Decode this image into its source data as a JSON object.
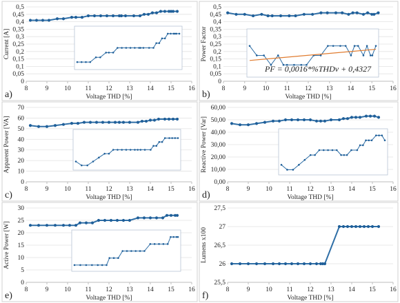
{
  "figure": {
    "panels": [
      {
        "letter": "a)",
        "ylabel": "Current [A]",
        "xlabel": "Voltage THD [%]"
      },
      {
        "letter": "b)",
        "ylabel": "Power Factor",
        "xlabel": "Voltage THD [%]",
        "equation": "PF = 0,0016*%THDv + 0,4327"
      },
      {
        "letter": "c)",
        "ylabel": "Apparent Power [VA]",
        "xlabel": "Voltage THD [%]"
      },
      {
        "letter": "d)",
        "ylabel": "Reactive Power [Var]",
        "xlabel": "Voltage THD [%]"
      },
      {
        "letter": "e)",
        "ylabel": "Active Power [W]",
        "xlabel": "Voltage THD [%]"
      },
      {
        "letter": "f)",
        "ylabel": "Lumens x100",
        "xlabel": "Voltage THD [%]"
      }
    ]
  },
  "chart_data": [
    {
      "type": "line",
      "xlabel": "Voltage THD [%]",
      "ylabel": "Current [A]",
      "xlim": [
        8,
        16
      ],
      "ylim": [
        0,
        0.5
      ],
      "xticks": [
        8,
        9,
        10,
        11,
        12,
        13,
        14,
        15,
        16
      ],
      "yticks": [
        0,
        0.05,
        0.1,
        0.15,
        0.2,
        0.25,
        0.3,
        0.35,
        0.4,
        0.45,
        0.5
      ],
      "ytick_labels": [
        "0",
        "0,05",
        "0,1",
        "0,15",
        "0,2",
        "0,25",
        "0,3",
        "0,35",
        "0,4",
        "0,45",
        "0,5"
      ],
      "x": [
        8.2,
        8.5,
        8.8,
        9.1,
        9.5,
        9.8,
        10.2,
        10.4,
        10.7,
        11.0,
        11.3,
        11.6,
        11.9,
        12.2,
        12.5,
        12.6,
        12.8,
        13.2,
        13.5,
        13.7,
        13.9,
        14.1,
        14.3,
        14.5,
        14.7,
        14.9,
        15.0,
        15.1,
        15.3
      ],
      "y": [
        0.41,
        0.41,
        0.41,
        0.41,
        0.42,
        0.42,
        0.43,
        0.43,
        0.43,
        0.44,
        0.44,
        0.44,
        0.44,
        0.44,
        0.44,
        0.44,
        0.44,
        0.44,
        0.44,
        0.45,
        0.45,
        0.46,
        0.46,
        0.47,
        0.47,
        0.47,
        0.47,
        0.47,
        0.47
      ]
    },
    {
      "type": "line",
      "xlabel": "Voltage THD [%]",
      "ylabel": "Power Factor",
      "xlim": [
        8,
        16
      ],
      "ylim": [
        0,
        0.5
      ],
      "xticks": [
        8,
        9,
        10,
        11,
        12,
        13,
        14,
        15,
        16
      ],
      "yticks": [
        0,
        0.05,
        0.1,
        0.15,
        0.2,
        0.25,
        0.3,
        0.35,
        0.4,
        0.45,
        0.5
      ],
      "ytick_labels": [
        "0",
        "0,05",
        "0,1",
        "0,15",
        "0,2",
        "0,25",
        "0,3",
        "0,35",
        "0,4",
        "0,45",
        "0,5"
      ],
      "x": [
        8.2,
        8.6,
        9.0,
        9.4,
        9.8,
        10.1,
        10.3,
        10.7,
        11.1,
        11.4,
        11.8,
        12.2,
        12.6,
        12.9,
        13.3,
        13.6,
        13.9,
        14.1,
        14.3,
        14.6,
        14.8,
        15.0,
        15.1,
        15.3
      ],
      "y": [
        0.46,
        0.45,
        0.45,
        0.44,
        0.45,
        0.44,
        0.44,
        0.44,
        0.44,
        0.44,
        0.45,
        0.45,
        0.46,
        0.46,
        0.46,
        0.46,
        0.45,
        0.46,
        0.46,
        0.45,
        0.46,
        0.45,
        0.45,
        0.46
      ],
      "trendline": {
        "equation": "PF = 0,0016*%THDv + 0,4327"
      }
    },
    {
      "type": "line",
      "xlabel": "Voltage THD [%]",
      "ylabel": "Apparent Power [VA]",
      "xlim": [
        8,
        16
      ],
      "ylim": [
        0,
        70
      ],
      "xticks": [
        8,
        9,
        10,
        11,
        12,
        13,
        14,
        15,
        16
      ],
      "yticks": [
        0,
        10,
        20,
        30,
        40,
        50,
        60,
        70
      ],
      "ytick_labels": [
        "0",
        "10",
        "20",
        "30",
        "40",
        "50",
        "60",
        "70"
      ],
      "x": [
        8.2,
        8.6,
        9.0,
        9.4,
        9.8,
        10.2,
        10.5,
        10.8,
        11.1,
        11.4,
        11.7,
        12.0,
        12.3,
        12.5,
        12.7,
        13.0,
        13.4,
        13.6,
        13.8,
        14.0,
        14.2,
        14.4,
        14.7,
        14.9,
        15.1,
        15.3
      ],
      "y": [
        53,
        52,
        52,
        53,
        54,
        55,
        55,
        56,
        56,
        56,
        56,
        56,
        56,
        56,
        56,
        56,
        56,
        57,
        57,
        58,
        58,
        59,
        59,
        59,
        59,
        59
      ]
    },
    {
      "type": "line",
      "xlabel": "Voltage THD [%]",
      "ylabel": "Reactive Power [Var]",
      "xlim": [
        8,
        16
      ],
      "ylim": [
        0,
        60
      ],
      "xticks": [
        8,
        9,
        10,
        11,
        12,
        13,
        14,
        15,
        16
      ],
      "yticks": [
        0,
        10,
        20,
        30,
        40,
        50,
        60
      ],
      "ytick_labels": [
        "0,00",
        "10,00",
        "20,00",
        "30,00",
        "40,00",
        "50,00",
        "60,00"
      ],
      "x": [
        8.2,
        8.6,
        9.0,
        9.4,
        9.8,
        10.2,
        10.5,
        10.8,
        11.1,
        11.4,
        11.7,
        12.0,
        12.3,
        12.5,
        12.7,
        13.0,
        13.4,
        13.6,
        13.8,
        14.0,
        14.2,
        14.4,
        14.7,
        14.9,
        15.1,
        15.3
      ],
      "y": [
        47,
        46,
        46,
        47,
        48,
        49,
        49,
        50,
        50,
        50,
        50,
        50,
        49,
        49,
        49,
        50,
        50,
        51,
        51,
        52,
        52,
        52,
        53,
        53,
        53,
        52
      ]
    },
    {
      "type": "line",
      "xlabel": "Voltage THD [%]",
      "ylabel": "Active Power [W]",
      "xlim": [
        8,
        16
      ],
      "ylim": [
        0,
        30
      ],
      "xticks": [
        8,
        9,
        10,
        11,
        12,
        13,
        14,
        15,
        16
      ],
      "yticks": [
        0,
        5,
        10,
        15,
        20,
        25,
        30
      ],
      "ytick_labels": [
        "0",
        "5",
        "10",
        "15",
        "20",
        "25",
        "30"
      ],
      "x": [
        8.2,
        8.6,
        9.0,
        9.4,
        9.8,
        10.1,
        10.4,
        10.6,
        10.9,
        11.2,
        11.5,
        11.8,
        12.1,
        12.4,
        12.7,
        13.0,
        13.4,
        13.7,
        14.0,
        14.3,
        14.6,
        14.8,
        15.0,
        15.2,
        15.3
      ],
      "y": [
        23,
        23,
        23,
        23,
        23,
        23,
        23,
        24,
        24,
        24,
        25,
        25,
        25,
        25,
        25,
        25,
        26,
        26,
        26,
        26,
        26,
        27,
        27,
        27,
        27
      ]
    },
    {
      "type": "line",
      "xlabel": "Voltage THD [%]",
      "ylabel": "Lumens x100",
      "xlim": [
        8,
        16
      ],
      "ylim": [
        25.5,
        27.5
      ],
      "xticks": [
        8,
        9,
        10,
        11,
        12,
        13,
        14,
        15,
        16
      ],
      "yticks": [
        25.5,
        26,
        26.5,
        27,
        27.5
      ],
      "ytick_labels": [
        "25,5",
        "26",
        "26,5",
        "27",
        "27,5"
      ],
      "x": [
        8.2,
        8.6,
        9.0,
        9.4,
        9.8,
        10.2,
        10.5,
        10.8,
        11.1,
        11.4,
        11.7,
        12.0,
        12.3,
        12.5,
        12.6,
        12.7,
        13.4,
        13.6,
        13.8,
        14.0,
        14.2,
        14.4,
        14.6,
        14.8,
        15.0,
        15.3
      ],
      "y": [
        26,
        26,
        26,
        26,
        26,
        26,
        26,
        26,
        26,
        26,
        26,
        26,
        26,
        26,
        26,
        26,
        27,
        27,
        27,
        27,
        27,
        27,
        27,
        27,
        27,
        27
      ]
    }
  ]
}
